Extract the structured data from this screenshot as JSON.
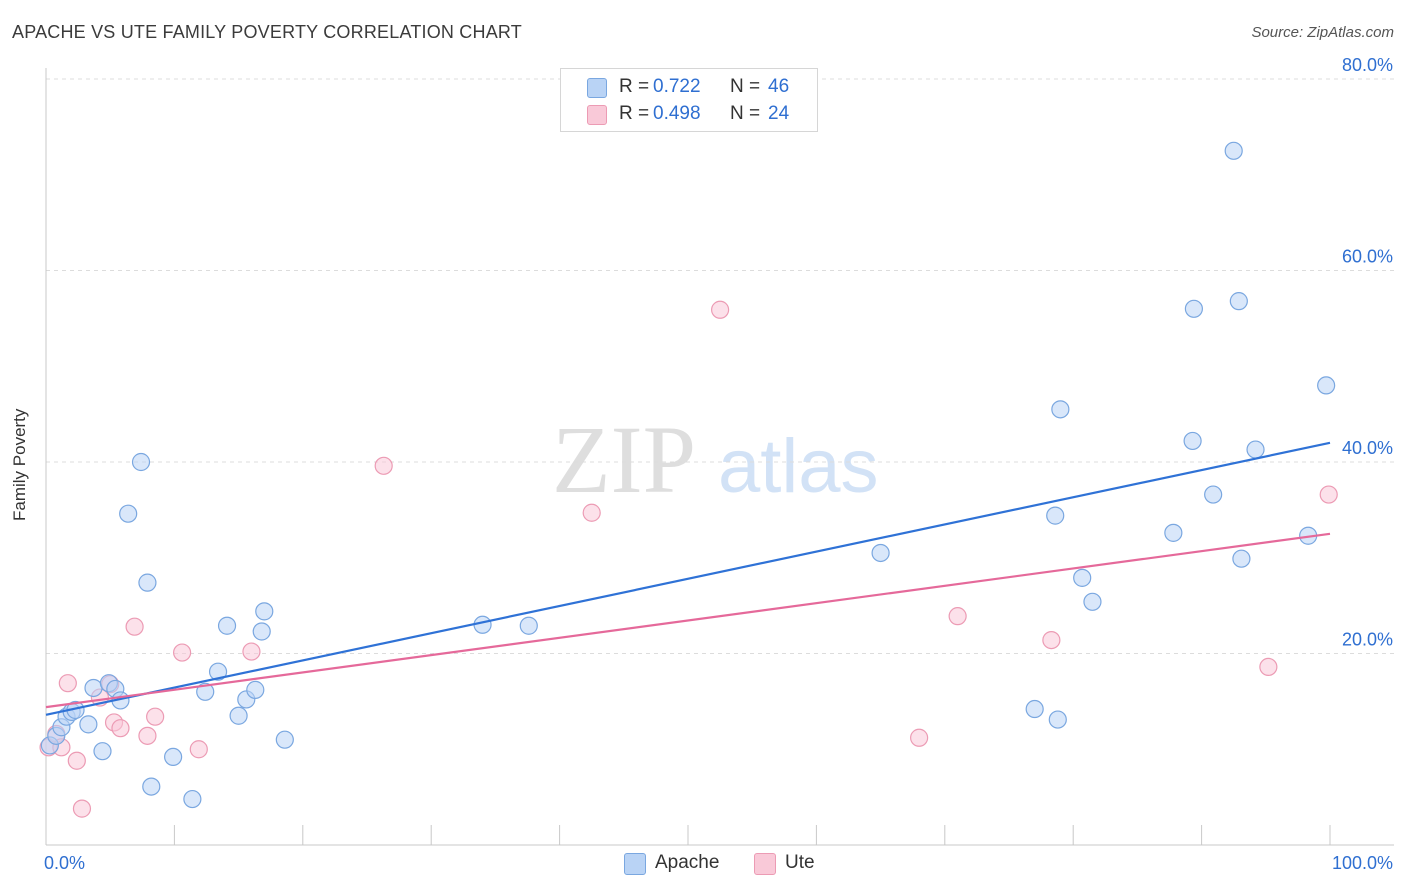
{
  "header": {
    "title": "APACHE VS UTE FAMILY POVERTY CORRELATION CHART",
    "source": "Source: ZipAtlas.com"
  },
  "watermark": {
    "zip": "ZIP",
    "atlas": "atlas"
  },
  "stats": {
    "apache": {
      "r_label": "R =",
      "r_value": "0.722",
      "n_label": "N =",
      "n_value": "46"
    },
    "ute": {
      "r_label": "R =",
      "r_value": "0.498",
      "n_label": "N =",
      "n_value": "24"
    }
  },
  "legend": {
    "apache": "Apache",
    "ute": "Ute"
  },
  "colors": {
    "apache_fill": "#b9d3f5",
    "apache_stroke": "#7aa7e0",
    "apache_line": "#2f72d6",
    "ute_fill": "#f9c9d8",
    "ute_stroke": "#ec9bb4",
    "ute_line": "#e5699a",
    "axis_text": "#2f6fd1",
    "grid": "#dcdcdc"
  },
  "chart_data": {
    "type": "scatter",
    "title": "APACHE VS UTE FAMILY POVERTY CORRELATION CHART",
    "xlabel": "",
    "ylabel": "Family Poverty",
    "xlim": [
      0,
      100
    ],
    "ylim": [
      0,
      80
    ],
    "x_tick_labels": [
      "0.0%",
      "100.0%"
    ],
    "y_ticks": [
      20,
      40,
      60,
      80
    ],
    "y_tick_labels": [
      "20.0%",
      "40.0%",
      "60.0%",
      "80.0%"
    ],
    "x_minor_ticks": [
      10,
      20,
      30,
      40,
      50,
      60,
      70,
      80,
      90,
      100
    ],
    "grid": true,
    "legend_position": "bottom-center",
    "series": [
      {
        "name": "Apache",
        "points": [
          [
            0.3,
            10.4
          ],
          [
            0.8,
            11.4
          ],
          [
            1.2,
            12.3
          ],
          [
            1.6,
            13.4
          ],
          [
            2.0,
            13.9
          ],
          [
            2.3,
            14.1
          ],
          [
            3.3,
            12.6
          ],
          [
            3.7,
            16.4
          ],
          [
            4.4,
            9.8
          ],
          [
            4.9,
            16.9
          ],
          [
            5.4,
            16.3
          ],
          [
            5.8,
            15.1
          ],
          [
            6.4,
            34.6
          ],
          [
            7.4,
            40.0
          ],
          [
            7.9,
            27.4
          ],
          [
            8.2,
            6.1
          ],
          [
            9.9,
            9.2
          ],
          [
            11.4,
            4.8
          ],
          [
            12.4,
            16.0
          ],
          [
            13.4,
            18.1
          ],
          [
            14.1,
            22.9
          ],
          [
            15.0,
            13.5
          ],
          [
            15.6,
            15.2
          ],
          [
            16.3,
            16.2
          ],
          [
            16.8,
            22.3
          ],
          [
            17.0,
            24.4
          ],
          [
            18.6,
            11.0
          ],
          [
            34.0,
            23.0
          ],
          [
            37.6,
            22.9
          ],
          [
            65.0,
            30.5
          ],
          [
            77.0,
            14.2
          ],
          [
            78.6,
            34.4
          ],
          [
            78.8,
            13.1
          ],
          [
            79.0,
            45.5
          ],
          [
            80.7,
            27.9
          ],
          [
            81.5,
            25.4
          ],
          [
            87.8,
            32.6
          ],
          [
            89.3,
            42.2
          ],
          [
            89.4,
            56.0
          ],
          [
            90.9,
            36.6
          ],
          [
            92.5,
            72.5
          ],
          [
            92.9,
            56.8
          ],
          [
            93.1,
            29.9
          ],
          [
            94.2,
            41.3
          ],
          [
            98.3,
            32.3
          ],
          [
            99.7,
            48.0
          ]
        ],
        "trend": {
          "x": [
            0,
            100
          ],
          "y": [
            13.6,
            42.0
          ]
        }
      },
      {
        "name": "Ute",
        "points": [
          [
            0.2,
            10.2
          ],
          [
            0.8,
            11.6
          ],
          [
            1.2,
            10.2
          ],
          [
            1.7,
            16.9
          ],
          [
            2.4,
            8.8
          ],
          [
            2.8,
            3.8
          ],
          [
            4.2,
            15.4
          ],
          [
            5.0,
            16.8
          ],
          [
            5.3,
            12.8
          ],
          [
            5.8,
            12.2
          ],
          [
            6.9,
            22.8
          ],
          [
            7.9,
            11.4
          ],
          [
            8.5,
            13.4
          ],
          [
            10.6,
            20.1
          ],
          [
            11.9,
            10.0
          ],
          [
            16.0,
            20.2
          ],
          [
            26.3,
            39.6
          ],
          [
            42.5,
            34.7
          ],
          [
            52.5,
            55.9
          ],
          [
            68.0,
            11.2
          ],
          [
            71.0,
            23.9
          ],
          [
            78.3,
            21.4
          ],
          [
            95.2,
            18.6
          ],
          [
            99.9,
            36.6
          ]
        ],
        "trend": {
          "x": [
            0,
            100
          ],
          "y": [
            14.4,
            32.5
          ]
        }
      }
    ]
  }
}
